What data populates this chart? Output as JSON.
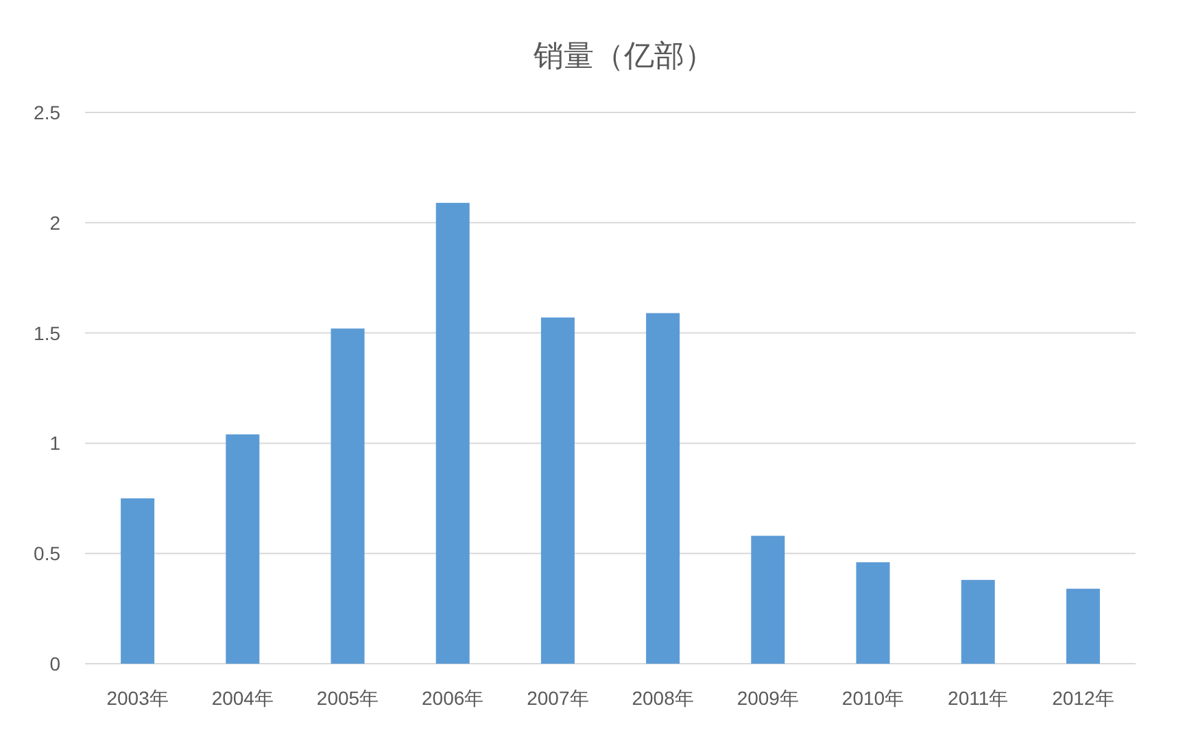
{
  "chart_data": {
    "type": "bar",
    "title": "销量（亿部）",
    "categories": [
      "2003年",
      "2004年",
      "2005年",
      "2006年",
      "2007年",
      "2008年",
      "2009年",
      "2010年",
      "2011年",
      "2012年"
    ],
    "values": [
      0.75,
      1.04,
      1.52,
      2.09,
      1.57,
      1.59,
      0.58,
      0.46,
      0.38,
      0.34
    ],
    "color": "#5b9bd5",
    "ylim": [
      0,
      2.5
    ],
    "yticks": [
      0,
      0.5,
      1,
      1.5,
      2,
      2.5
    ],
    "grid": "y"
  }
}
